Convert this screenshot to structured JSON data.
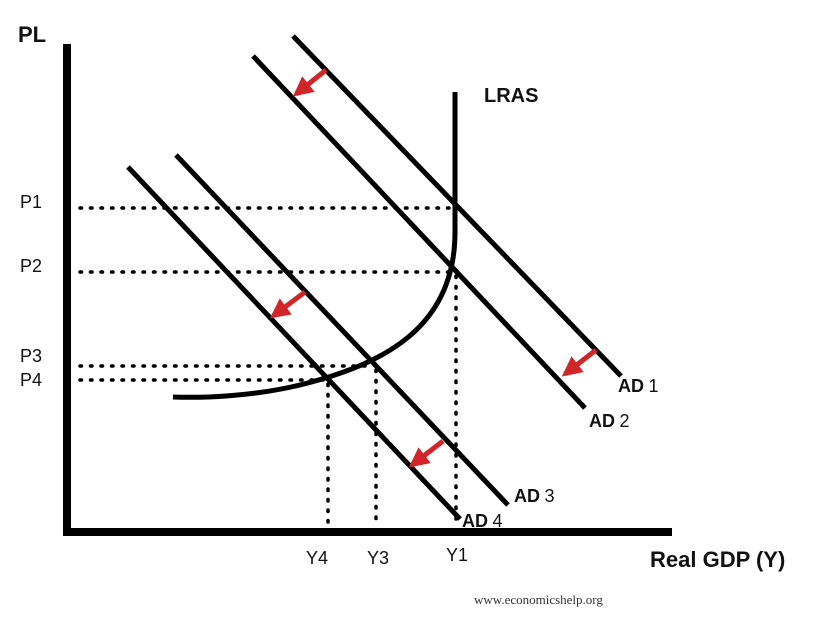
{
  "axes": {
    "y_title": "PL",
    "x_title": "Real GDP (Y)"
  },
  "price_levels": [
    "P1",
    "P2",
    "P3",
    "P4"
  ],
  "output_levels": [
    "Y4",
    "Y3",
    "Y1"
  ],
  "curves": {
    "lras": "LRAS",
    "ad1": {
      "name": "AD",
      "num": "1"
    },
    "ad2": {
      "name": "AD",
      "num": "2"
    },
    "ad3": {
      "name": "AD",
      "num": "3"
    },
    "ad4": {
      "name": "AD",
      "num": "4"
    }
  },
  "arrow_color": "#d0262a",
  "credit": "www.economicshelp.org"
}
